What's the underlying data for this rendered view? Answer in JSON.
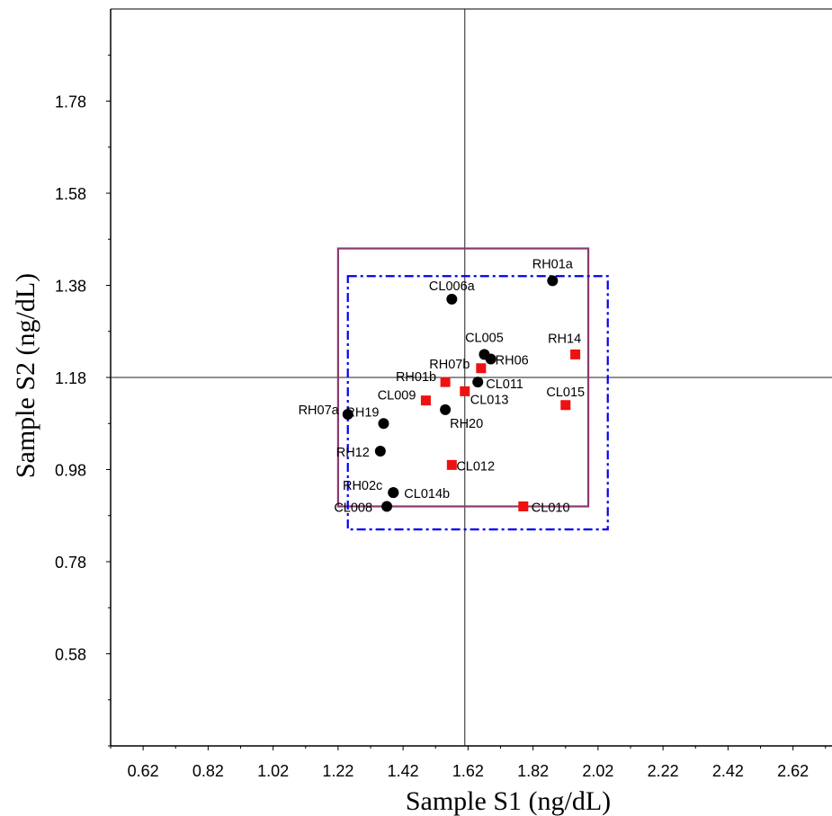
{
  "chart_data": {
    "type": "scatter",
    "title": "",
    "xlabel": "Sample S1 (ng/dL)",
    "ylabel": "Sample S2 (ng/dL)",
    "xlim": [
      0.52,
      2.74
    ],
    "ylim": [
      0.38,
      1.98
    ],
    "x_ticks": [
      "0.62",
      "0.82",
      "1.02",
      "1.22",
      "1.42",
      "1.62",
      "1.82",
      "2.02",
      "2.22",
      "2.42",
      "2.62"
    ],
    "y_ticks": [
      "0.58",
      "0.78",
      "0.98",
      "1.18",
      "1.38",
      "1.58",
      "1.78"
    ],
    "reference_lines": {
      "x": 1.61,
      "y": 1.18
    },
    "regions": [
      {
        "style": "solid",
        "color": "#8b3a6e",
        "x": [
          1.22,
          1.99
        ],
        "y": [
          0.9,
          1.46
        ]
      },
      {
        "style": "dash-dot",
        "color": "#0000ee",
        "x": [
          1.25,
          2.05
        ],
        "y": [
          0.85,
          1.4
        ]
      }
    ],
    "series": [
      {
        "marker": "circle",
        "color": "#000000",
        "points": [
          {
            "label": "RH01a",
            "x": 1.88,
            "y": 1.39
          },
          {
            "label": "CL006a",
            "x": 1.57,
            "y": 1.35
          },
          {
            "label": "CL005",
            "x": 1.67,
            "y": 1.23
          },
          {
            "label": "RH06",
            "x": 1.69,
            "y": 1.22
          },
          {
            "label": "CL011",
            "x": 1.65,
            "y": 1.17
          },
          {
            "label": "RH20",
            "x": 1.55,
            "y": 1.11
          },
          {
            "label": "RH07a",
            "x": 1.25,
            "y": 1.1
          },
          {
            "label": "RH19",
            "x": 1.36,
            "y": 1.08
          },
          {
            "label": "RH12",
            "x": 1.35,
            "y": 1.02
          },
          {
            "label": "CL014b",
            "x": 1.39,
            "y": 0.93
          },
          {
            "label": "RH02c",
            "x": 1.39,
            "y": 0.93
          },
          {
            "label": "CL008",
            "x": 1.37,
            "y": 0.9
          }
        ]
      },
      {
        "marker": "square",
        "color": "#ee1111",
        "points": [
          {
            "label": "RH14",
            "x": 1.95,
            "y": 1.23
          },
          {
            "label": "RH07b",
            "x": 1.66,
            "y": 1.2
          },
          {
            "label": "RH01b",
            "x": 1.55,
            "y": 1.17
          },
          {
            "label": "CL013",
            "x": 1.61,
            "y": 1.15
          },
          {
            "label": "CL009",
            "x": 1.49,
            "y": 1.13
          },
          {
            "label": "CL015",
            "x": 1.92,
            "y": 1.12
          },
          {
            "label": "CL012",
            "x": 1.57,
            "y": 0.99
          },
          {
            "label": "CL010",
            "x": 1.79,
            "y": 0.9
          }
        ]
      }
    ],
    "label_offsets": {
      "RH01a": [
        0,
        -14,
        "middle"
      ],
      "CL006a": [
        0,
        -10,
        "middle"
      ],
      "CL005": [
        0,
        -14,
        "middle"
      ],
      "RH06": [
        5,
        6,
        "start"
      ],
      "CL011": [
        9,
        7,
        "start"
      ],
      "RH20": [
        5,
        20,
        "start"
      ],
      "RH07a": [
        -10,
        0,
        "end"
      ],
      "RH19": [
        -5,
        -8,
        "end"
      ],
      "RH12": [
        -12,
        6,
        "end"
      ],
      "CL014b": [
        12,
        6,
        "start"
      ],
      "RH02c": [
        -12,
        -3,
        "end"
      ],
      "CL008": [
        -16,
        6,
        "end"
      ],
      "RH14": [
        -12,
        -13,
        "middle"
      ],
      "RH07b": [
        -35,
        0,
        "middle"
      ],
      "RH01b": [
        -10,
        -1,
        "end"
      ],
      "CL013": [
        6,
        14,
        "start"
      ],
      "CL009": [
        -11,
        -1,
        "end"
      ],
      "CL015": [
        0,
        -10,
        "middle"
      ],
      "CL012": [
        5,
        6,
        "start"
      ],
      "CL010": [
        9,
        6,
        "start"
      ]
    }
  }
}
